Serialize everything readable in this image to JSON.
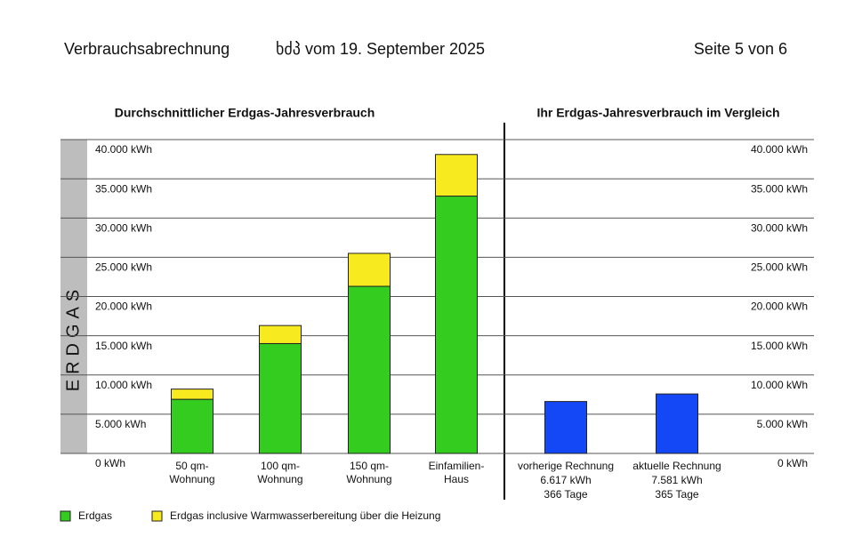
{
  "header": {
    "title": "Verbrauchsabrechnung",
    "date": "ხძპ vom 19. September 2025",
    "page": "Seite 5 von 6"
  },
  "chart_data": [
    {
      "type": "stacked-bar",
      "title": "Durchschnittlicher Erdgas-Jahresverbrauch",
      "ylabel": "ERDGAS",
      "categories": [
        "50 qm-\nWohnung",
        "100 qm-\nWohnung",
        "150 qm-\nWohnung",
        "Einfamilien-\nHaus"
      ],
      "series": [
        {
          "name": "Erdgas",
          "color": "#33cc1f",
          "values": [
            6900,
            14000,
            21300,
            32800
          ]
        },
        {
          "name": "Erdgas inclusive Warmwasserbereitung über die Heizung",
          "color": "#f7ea1e",
          "values": [
            1300,
            2300,
            4200,
            5300
          ]
        }
      ],
      "ylim": [
        0,
        40000
      ],
      "yticks": [
        {
          "value": 0,
          "label": "0 kWh"
        },
        {
          "value": 5000,
          "label": "5.000 kWh"
        },
        {
          "value": 10000,
          "label": "10.000 kWh"
        },
        {
          "value": 15000,
          "label": "15.000 kWh"
        },
        {
          "value": 20000,
          "label": "20.000 kWh"
        },
        {
          "value": 25000,
          "label": "25.000 kWh"
        },
        {
          "value": 30000,
          "label": "30.000 kWh"
        },
        {
          "value": 35000,
          "label": "35.000 kWh"
        },
        {
          "value": 40000,
          "label": "40.000 kWh"
        }
      ],
      "grid": true
    },
    {
      "type": "bar",
      "title": "Ihr Erdgas-Jahresverbrauch im Vergleich",
      "categories": [
        "vorherige Rechnung",
        "aktuelle Rechnung"
      ],
      "values": [
        6617,
        7581
      ],
      "value_labels": [
        "6.617 kWh",
        "7.581 kWh"
      ],
      "days": [
        "366 Tage",
        "365 Tage"
      ],
      "color": "#1447f5",
      "ylim": [
        0,
        40000
      ],
      "yticks": [
        {
          "value": 0,
          "label": "0 kWh"
        },
        {
          "value": 5000,
          "label": "5.000 kWh"
        },
        {
          "value": 10000,
          "label": "10.000 kWh"
        },
        {
          "value": 15000,
          "label": "15.000 kWh"
        },
        {
          "value": 20000,
          "label": "20.000 kWh"
        },
        {
          "value": 25000,
          "label": "25.000 kWh"
        },
        {
          "value": 30000,
          "label": "30.000 kWh"
        },
        {
          "value": 35000,
          "label": "35.000 kWh"
        },
        {
          "value": 40000,
          "label": "40.000 kWh"
        }
      ],
      "grid": true
    }
  ]
}
